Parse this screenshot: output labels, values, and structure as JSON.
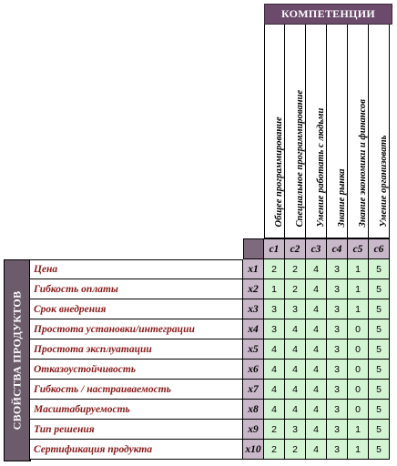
{
  "header": {
    "competencies": "КОМПЕТЕНЦИИ"
  },
  "side_label": "СВОЙСТВА ПРОДУКТОВ",
  "columns": [
    {
      "code": "с1",
      "name": "Общее программирование"
    },
    {
      "code": "с2",
      "name": "Специальное программирование"
    },
    {
      "code": "с3",
      "name": "Умение работать с людьми"
    },
    {
      "code": "с4",
      "name": "Знание рынка"
    },
    {
      "code": "с5",
      "name": "Знание экономики и финансов"
    },
    {
      "code": "с6",
      "name": "Умение организовать"
    }
  ],
  "rows": [
    {
      "code": "x1",
      "label": "Цена",
      "values": [
        "2",
        "2",
        "4",
        "3",
        "1",
        "5"
      ]
    },
    {
      "code": "x2",
      "label": "Гибкость оплаты",
      "values": [
        "1",
        "2",
        "4",
        "3",
        "1",
        "5"
      ]
    },
    {
      "code": "x3",
      "label": "Срок внедрения",
      "values": [
        "3",
        "3",
        "4",
        "3",
        "1",
        "5"
      ]
    },
    {
      "code": "x4",
      "label": "Простота установки/интеграции",
      "values": [
        "3",
        "4",
        "4",
        "3",
        "0",
        "5"
      ]
    },
    {
      "code": "x5",
      "label": "Простота эксплуатации",
      "values": [
        "4",
        "4",
        "4",
        "3",
        "0",
        "5"
      ]
    },
    {
      "code": "x6",
      "label": "Отказоустойчивость",
      "values": [
        "4",
        "4",
        "4",
        "3",
        "0",
        "5"
      ]
    },
    {
      "code": "x7",
      "label": "Гибкость / настраиваемость",
      "values": [
        "4",
        "4",
        "4",
        "3",
        "0",
        "5"
      ]
    },
    {
      "code": "x8",
      "label": "Масштабируемость",
      "values": [
        "4",
        "4",
        "4",
        "3",
        "0",
        "5"
      ]
    },
    {
      "code": "x9",
      "label": "Тип решения",
      "values": [
        "2",
        "3",
        "4",
        "3",
        "1",
        "5"
      ]
    },
    {
      "code": "x10",
      "label": "Сертификация продукта",
      "values": [
        "2",
        "2",
        "4",
        "3",
        "1",
        "5"
      ]
    }
  ]
}
